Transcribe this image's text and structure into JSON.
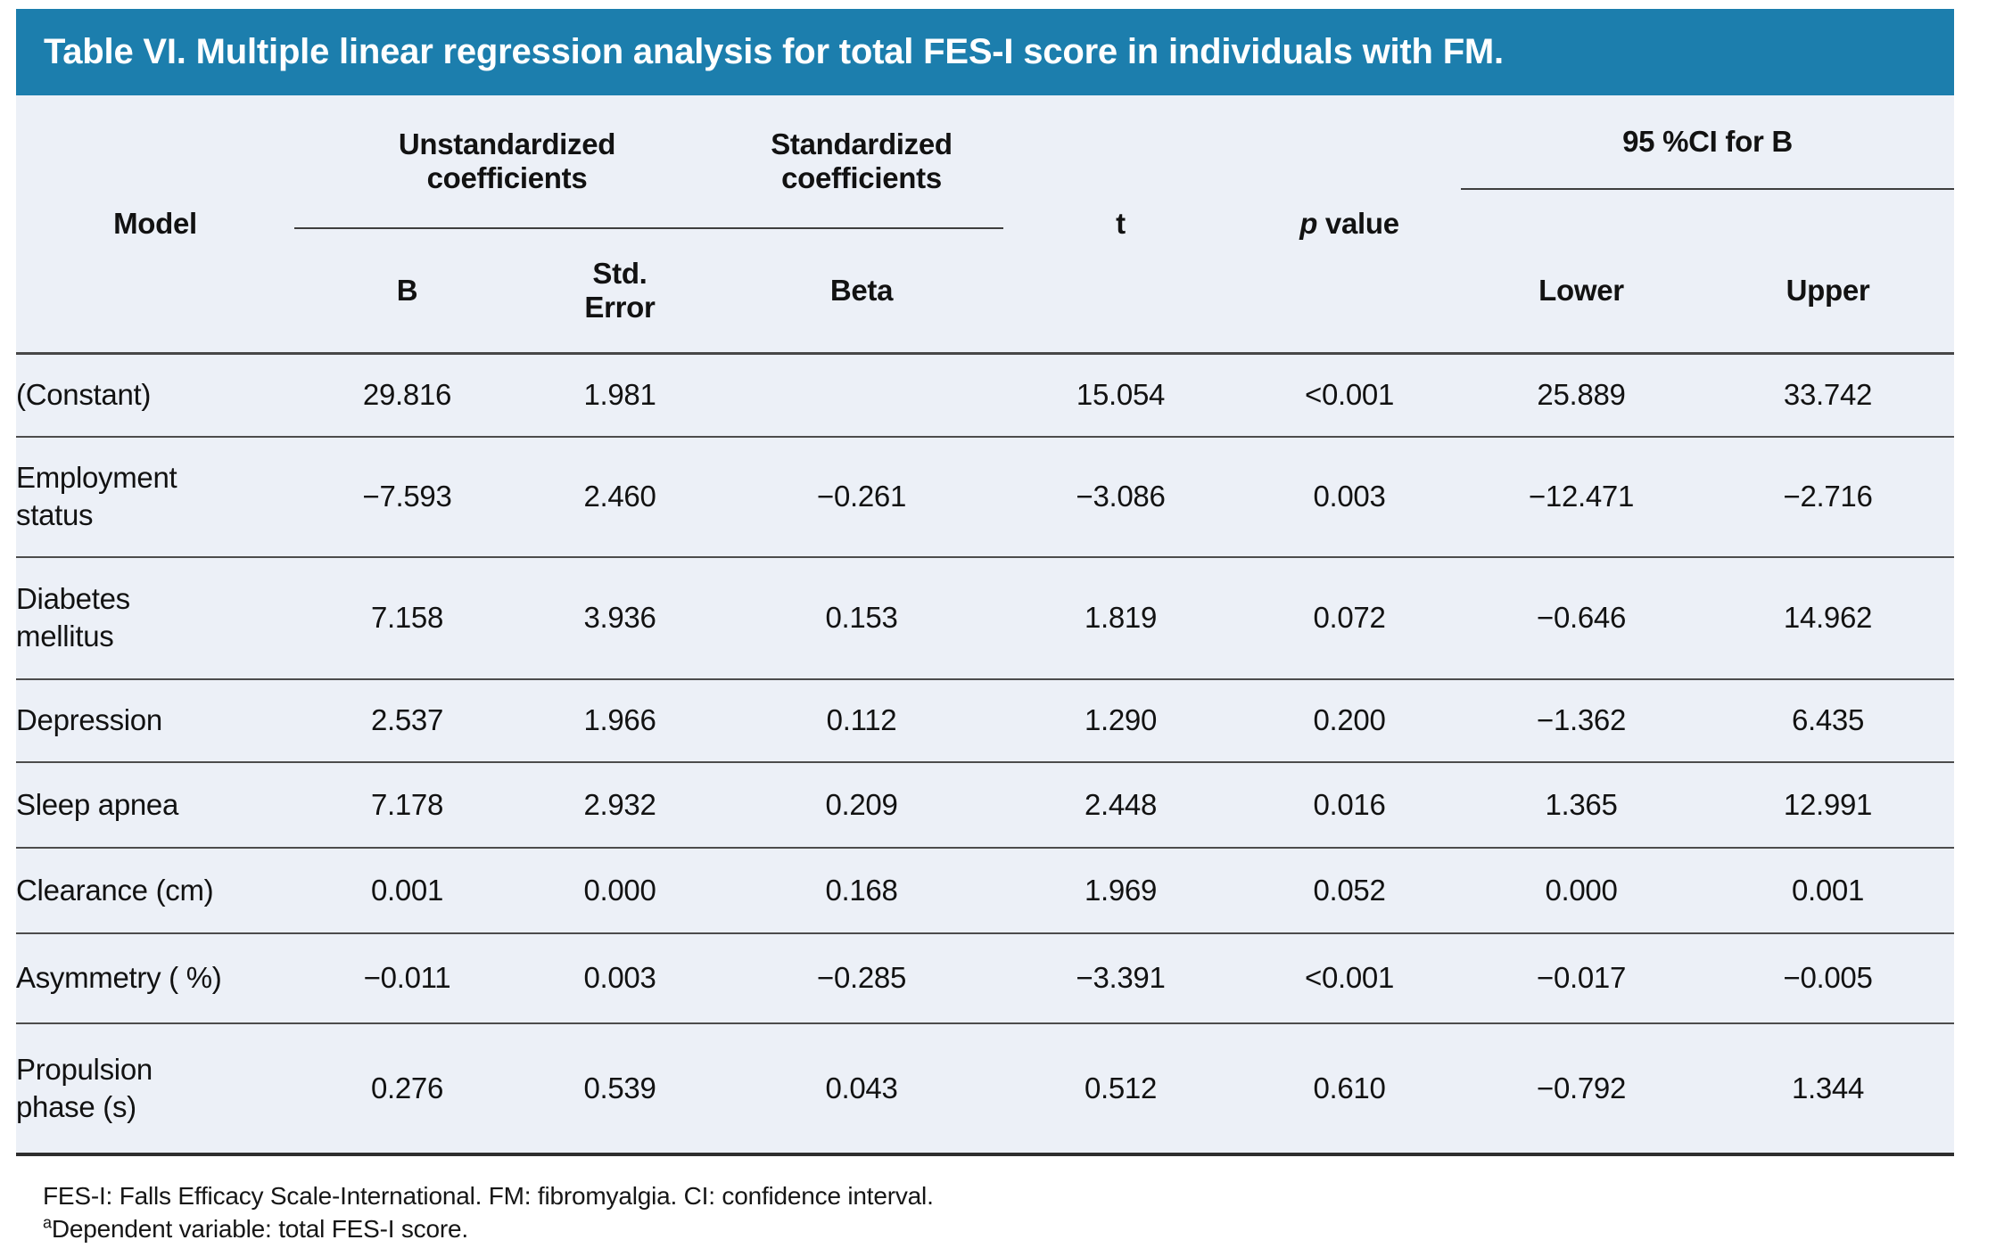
{
  "colors": {
    "title_bar": "#1c7ead",
    "title_text": "#ffffff",
    "table_background": "#ecf0f7",
    "row_divider": "#4c4c4c",
    "bottom_border": "#2e2e2e",
    "text": "#121212"
  },
  "table": {
    "title": "Table VI. Multiple linear regression analysis for total FES-I score in individuals with FM.",
    "header": {
      "model": "Model",
      "unstandardized_lines": [
        "Unstandardized",
        "coefficients"
      ],
      "standardized_lines": [
        "Standardized",
        "coefficients"
      ],
      "t": "t",
      "p_italic": "p",
      "p_rest": " value",
      "ci_group": "95 %CI for B",
      "sub": {
        "b": "B",
        "std_error_lines": [
          "Std.",
          "Error"
        ],
        "beta": "Beta",
        "lower": "Lower",
        "upper": "Upper"
      }
    },
    "rows": [
      {
        "model_lines": [
          "(Constant)"
        ],
        "b": "29.816",
        "std_error": "1.981",
        "beta": "",
        "t": "15.054",
        "p": "<0.001",
        "lower": "25.889",
        "upper": "33.742"
      },
      {
        "model_lines": [
          "Employment",
          "status"
        ],
        "b": "−7.593",
        "std_error": "2.460",
        "beta": "−0.261",
        "t": "−3.086",
        "p": "0.003",
        "lower": "−12.471",
        "upper": "−2.716"
      },
      {
        "model_lines": [
          "Diabetes",
          "mellitus"
        ],
        "b": "7.158",
        "std_error": "3.936",
        "beta": "0.153",
        "t": "1.819",
        "p": "0.072",
        "lower": "−0.646",
        "upper": "14.962"
      },
      {
        "model_lines": [
          "Depression"
        ],
        "b": "2.537",
        "std_error": "1.966",
        "beta": "0.112",
        "t": "1.290",
        "p": "0.200",
        "lower": "−1.362",
        "upper": "6.435"
      },
      {
        "model_lines": [
          "Sleep apnea"
        ],
        "b": "7.178",
        "std_error": "2.932",
        "beta": "0.209",
        "t": "2.448",
        "p": "0.016",
        "lower": "1.365",
        "upper": "12.991"
      },
      {
        "model_lines": [
          "Clearance (cm)"
        ],
        "b": "0.001",
        "std_error": "0.000",
        "beta": "0.168",
        "t": "1.969",
        "p": "0.052",
        "lower": "0.000",
        "upper": "0.001"
      },
      {
        "model_lines": [
          "Asymmetry ( %)"
        ],
        "b": "−0.011",
        "std_error": "0.003",
        "beta": "−0.285",
        "t": "−3.391",
        "p": "<0.001",
        "lower": "−0.017",
        "upper": "−0.005"
      },
      {
        "model_lines": [
          "Propulsion",
          "phase (s)"
        ],
        "b": "0.276",
        "std_error": "0.539",
        "beta": "0.043",
        "t": "0.512",
        "p": "0.610",
        "lower": "−0.792",
        "upper": "1.344"
      }
    ],
    "footnotes": {
      "abbreviations": "FES-I: Falls Efficacy Scale-International. FM: fibromyalgia. CI: confidence interval.",
      "dependent_sup": "a",
      "dependent_text": "Dependent variable: total FES-I score."
    }
  }
}
